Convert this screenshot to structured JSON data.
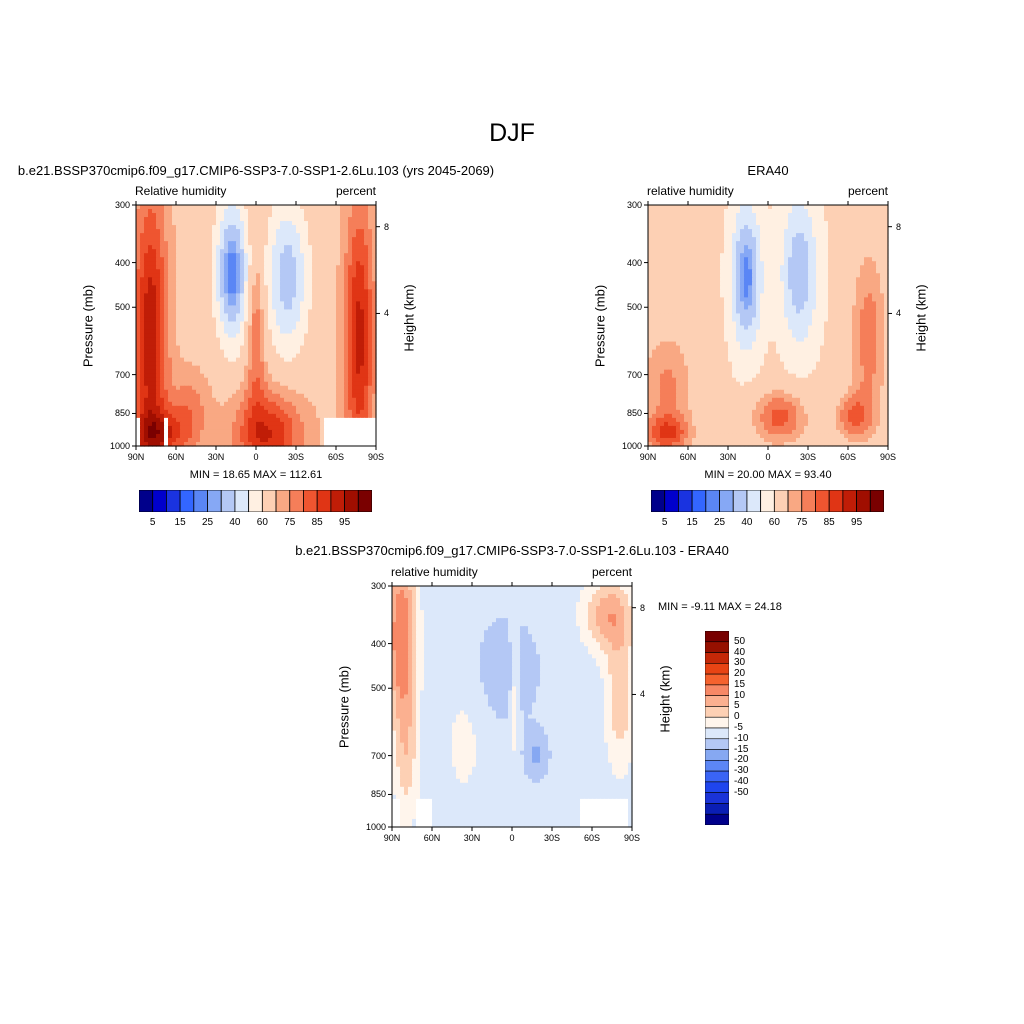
{
  "figure": {
    "title": "DJF"
  },
  "colors": {
    "rh_levels": [
      "#00008b",
      "#0000cc",
      "#1a33e0",
      "#3366ff",
      "#5a86f5",
      "#86a8f5",
      "#b4c8f5",
      "#dce8fa",
      "#fff0e2",
      "#fdd0b4",
      "#f9a883",
      "#f57e59",
      "#ef5530",
      "#e03515",
      "#c01d07",
      "#a00e00",
      "#7a0000"
    ],
    "diff_levels": [
      "#00008b",
      "#0a1eb4",
      "#1a33d8",
      "#1f45ee",
      "#3a64f5",
      "#5c86f5",
      "#86a8f2",
      "#b4c8f5",
      "#dce8fa",
      "#fff5ec",
      "#fdd0b4",
      "#fbb090",
      "#f78866",
      "#f5622e",
      "#e84414",
      "#c42808",
      "#961000",
      "#780000"
    ]
  },
  "chart_data": [
    {
      "type": "heatmap",
      "title": "b.e21.BSSP370cmip6.f09_g17.CMIP6-SSP3-7.0-SSP1-2.6Lu.103 (yrs 2045-2069)",
      "subtitle_left": "Relative humidity",
      "subtitle_right": "percent",
      "ylabel": "Pressure (mb)",
      "ylabel_right": "Height (km)",
      "x_ticks": [
        "90N",
        "60N",
        "30N",
        "0",
        "30S",
        "60S",
        "90S"
      ],
      "y_ticks": [
        "300",
        "400",
        "500",
        "700",
        "850",
        "1000"
      ],
      "y_ticks_right": [
        "8",
        "4"
      ],
      "min_max_text": "MIN =  18.65  MAX = 112.61",
      "colorbar_labels": [
        "5",
        "15",
        "25",
        "40",
        "60",
        "75",
        "85",
        "95"
      ],
      "stats": {
        "min": 18.65,
        "max": 112.61
      }
    },
    {
      "type": "heatmap",
      "title": "ERA40",
      "subtitle_left": "relative humidity",
      "subtitle_right": "percent",
      "ylabel": "Pressure (mb)",
      "ylabel_right": "Height (km)",
      "x_ticks": [
        "90N",
        "60N",
        "30N",
        "0",
        "30S",
        "60S",
        "90S"
      ],
      "y_ticks": [
        "300",
        "400",
        "500",
        "700",
        "850",
        "1000"
      ],
      "y_ticks_right": [
        "8",
        "4"
      ],
      "min_max_text": "MIN =  20.00  MAX =  93.40",
      "colorbar_labels": [
        "5",
        "15",
        "25",
        "40",
        "60",
        "75",
        "85",
        "95"
      ],
      "stats": {
        "min": 20.0,
        "max": 93.4
      }
    },
    {
      "type": "heatmap",
      "title": "b.e21.BSSP370cmip6.f09_g17.CMIP6-SSP3-7.0-SSP1-2.6Lu.103 - ERA40",
      "subtitle_left": "relative humidity",
      "subtitle_right": "percent",
      "ylabel": "Pressure (mb)",
      "ylabel_right": "Height (km)",
      "x_ticks": [
        "90N",
        "60N",
        "30N",
        "0",
        "30S",
        "60S",
        "90S"
      ],
      "y_ticks": [
        "300",
        "400",
        "500",
        "700",
        "850",
        "1000"
      ],
      "y_ticks_right": [
        "8",
        "4"
      ],
      "min_max_text": "MIN =  -9.11  MAX =  24.18",
      "colorbar_labels": [
        "50",
        "40",
        "30",
        "20",
        "15",
        "10",
        "5",
        "0",
        "-5",
        "-10",
        "-15",
        "-20",
        "-30",
        "-40",
        "-50"
      ],
      "stats": {
        "min": -9.11,
        "max": 24.18
      }
    }
  ]
}
